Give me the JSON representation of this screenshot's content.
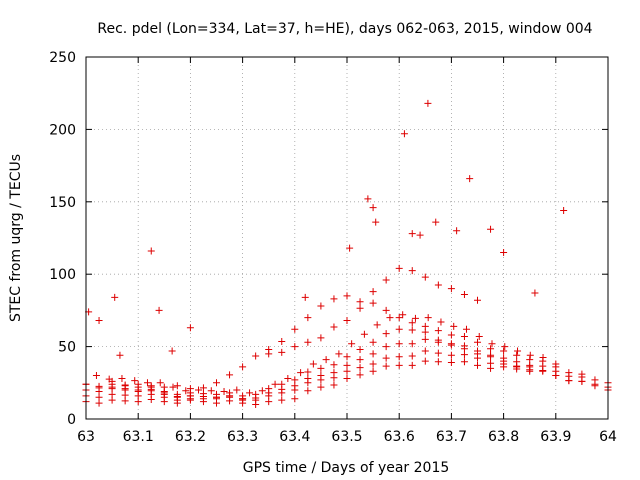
{
  "chart_data": {
    "type": "scatter",
    "title": "Rec. pdel (Lon=334, Lat=37, h=HE), days 062-063, 2015, window 004",
    "xlabel": "GPS time / Days of year 2015",
    "ylabel": "STEC from uqrg / TECUs",
    "xlim": [
      63,
      64
    ],
    "ylim": [
      0,
      250
    ],
    "xticks": [
      63,
      63.1,
      63.2,
      63.3,
      63.4,
      63.5,
      63.6,
      63.7,
      63.8,
      63.9,
      64
    ],
    "xtick_labels": [
      "63",
      "63.1",
      "63.2",
      "63.3",
      "63.4",
      "63.5",
      "63.6",
      "63.7",
      "63.8",
      "63.9",
      "64"
    ],
    "yticks": [
      0,
      50,
      100,
      150,
      200,
      250
    ],
    "ytick_labels": [
      "0",
      "50",
      "100",
      "150",
      "200",
      "250"
    ],
    "grid": true,
    "marker": "+",
    "color": "#dd0000",
    "outliers": [
      [
        63.005,
        74
      ],
      [
        63.025,
        68
      ],
      [
        63.055,
        84
      ],
      [
        63.065,
        44
      ],
      [
        63.125,
        116
      ],
      [
        63.14,
        75
      ],
      [
        63.165,
        47
      ],
      [
        63.2,
        63
      ],
      [
        63.42,
        84
      ],
      [
        63.505,
        118
      ],
      [
        63.54,
        152
      ],
      [
        63.55,
        146
      ],
      [
        63.555,
        136
      ],
      [
        63.61,
        197
      ],
      [
        63.625,
        128
      ],
      [
        63.64,
        127
      ],
      [
        63.655,
        218
      ],
      [
        63.67,
        136
      ],
      [
        63.71,
        130
      ],
      [
        63.735,
        166
      ],
      [
        63.775,
        131
      ],
      [
        63.8,
        115
      ],
      [
        63.86,
        87
      ],
      [
        63.915,
        144
      ]
    ],
    "tracks": [
      {
        "x0": 63.0,
        "x1": 64.0,
        "y": [
          12,
          13,
          12,
          12,
          13,
          11,
          11,
          12,
          14,
          22,
          28,
          33,
          37,
          40,
          39,
          37,
          36,
          33,
          30,
          26,
          20
        ]
      },
      {
        "x0": 63.0,
        "x1": 64.0,
        "y": [
          16,
          17,
          16,
          15,
          14,
          14,
          13,
          16,
          20,
          27,
          33,
          38,
          43,
          47,
          44,
          42,
          38,
          34,
          30,
          26,
          22
        ]
      },
      {
        "x0": 63.0,
        "x1": 64.0,
        "y": [
          20,
          21,
          19,
          17,
          16,
          15,
          14,
          18,
          23,
          30,
          37,
          45,
          52,
          55,
          51,
          47,
          42,
          37,
          33,
          29,
          25
        ]
      },
      {
        "x0": 63.0,
        "x1": 63.95,
        "y": [
          24,
          24,
          22,
          19,
          18,
          17,
          16,
          21,
          27,
          35,
          43,
          53,
          62,
          64,
          58,
          53,
          47,
          41,
          36,
          31
        ]
      },
      {
        "x0": 63.02,
        "x1": 63.9,
        "y": [
          30,
          28,
          25,
          22,
          20,
          19,
          18,
          24,
          32,
          41,
          52,
          65,
          72,
          70,
          64,
          57,
          50,
          44,
          38
        ]
      },
      {
        "x0": 63.05,
        "x1": 63.85,
        "y": [
          26,
          24,
          22,
          21,
          25,
          36,
          48,
          62,
          78,
          85,
          80,
          70,
          60,
          52,
          45,
          40,
          36
        ]
      },
      {
        "x0": 63.35,
        "x1": 63.75,
        "y": [
          45,
          50,
          56,
          68,
          88,
          104,
          98,
          90,
          82
        ]
      },
      {
        "x0": 63.0,
        "x1": 63.3,
        "y": [
          24,
          22,
          20,
          18,
          16,
          15,
          14
        ]
      }
    ]
  }
}
